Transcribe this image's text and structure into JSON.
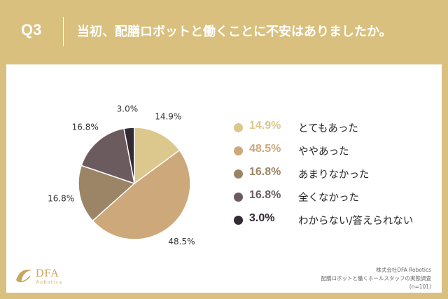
{
  "header": {
    "question": "Q3",
    "title": "当初、配膳ロボットと働くことに不安はありましたか。"
  },
  "chart_data": {
    "type": "pie",
    "categories": [
      "とてもあった",
      "ややあった",
      "あまりなかった",
      "全くなかった",
      "わからない/答えられない"
    ],
    "values": [
      14.9,
      48.5,
      16.8,
      16.8,
      3.0
    ],
    "value_labels": [
      "14.9%",
      "48.5%",
      "16.8%",
      "16.8%",
      "3.0%"
    ],
    "legend_labels": [
      "14.9%",
      "48.5%",
      "16.8%",
      "16.8%",
      "3.0%"
    ],
    "colors": [
      "#dcc78c",
      "#cda87a",
      "#9b8566",
      "#6c5b5e",
      "#332a33"
    ],
    "legend_position": "right"
  },
  "source": {
    "line1": "株式会社DFA Robotics",
    "line2": "配膳ロボットと働くホールスタッフの実態調査",
    "line3": "(n=101)"
  },
  "logo": {
    "name": "DFA",
    "sub": "Robotics",
    "color": "#c9a55a"
  }
}
